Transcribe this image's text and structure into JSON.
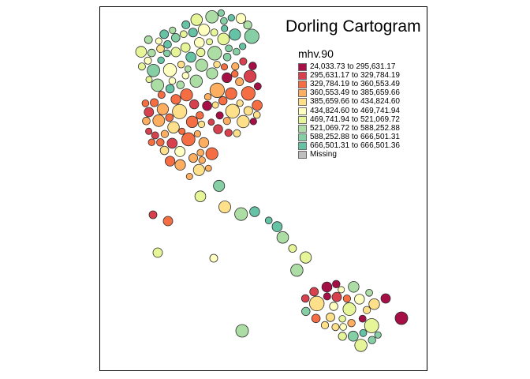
{
  "map": {
    "title": "Dorling Cartogram",
    "legend": {
      "title": "mhv.90",
      "classes": [
        {
          "label": "24,033.73 to 295,631.17",
          "color": "#a50f45"
        },
        {
          "label": "295,631.17 to 329,784.19",
          "color": "#d7414e"
        },
        {
          "label": "329,784.19 to 360,553.49",
          "color": "#f46d43"
        },
        {
          "label": "360,553.49 to 385,659.66",
          "color": "#fdae61"
        },
        {
          "label": "385,659.66 to 434,824.60",
          "color": "#fee08b"
        },
        {
          "label": "434,824.60 to 469,741.94",
          "color": "#ffffbf"
        },
        {
          "label": "469,741.94 to 521,069.72",
          "color": "#e6f598"
        },
        {
          "label": "521,069.72 to 588,252.88",
          "color": "#abdda4"
        },
        {
          "label": "588,252.88 to 666,501.31",
          "color": "#86cfa5"
        },
        {
          "label": "666,501.31 to 666,501.36",
          "color": "#66c2a5"
        },
        {
          "label": "Missing",
          "color": "#bebebe"
        }
      ]
    }
  }
}
